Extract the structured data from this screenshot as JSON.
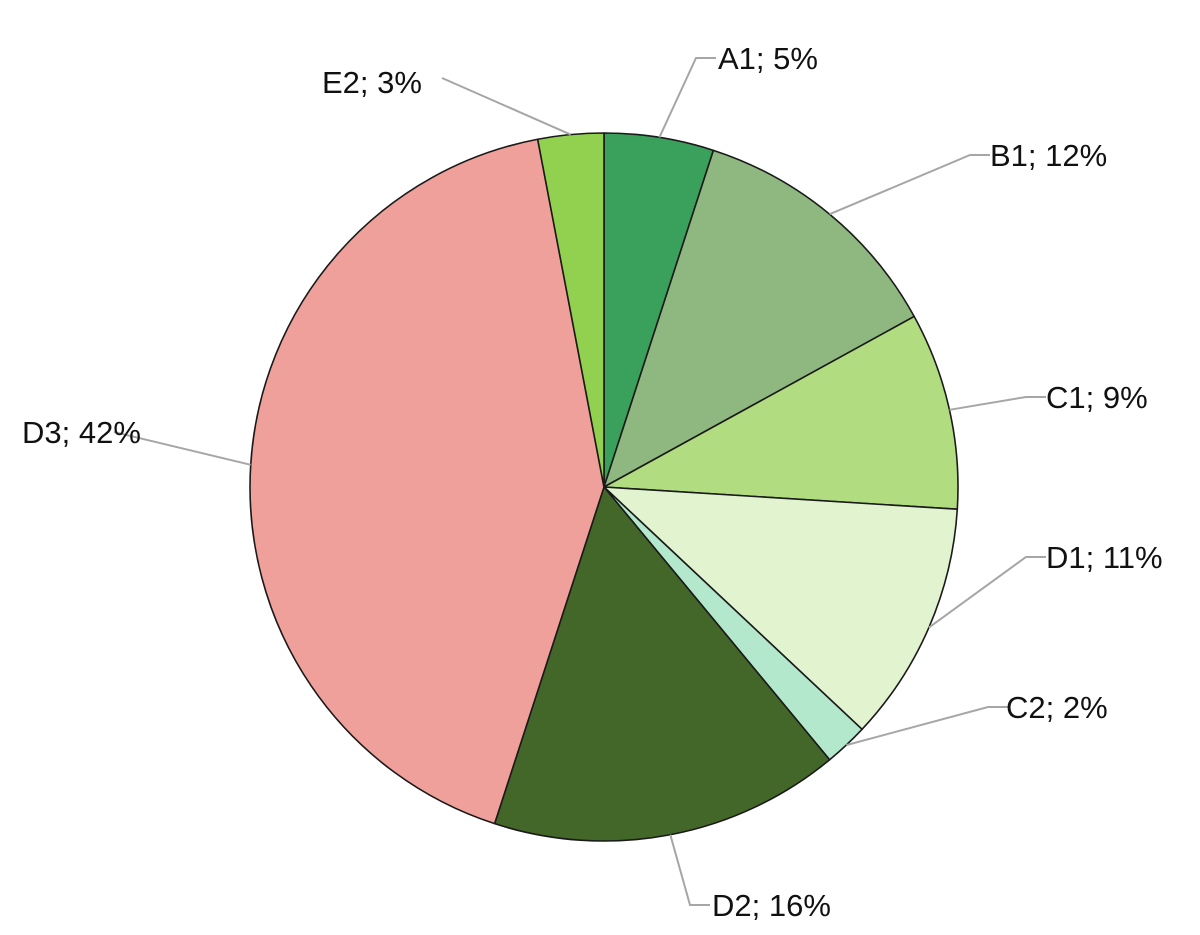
{
  "chart_data": {
    "type": "pie",
    "title": "",
    "start": "12 o'clock",
    "direction": "clockwise",
    "legend": "none",
    "label_format": "{category}; {value}%",
    "slices": [
      {
        "category": "A1",
        "value": 5,
        "label": "A1; 5%",
        "color": "#3aa15c"
      },
      {
        "category": "B1",
        "value": 12,
        "label": "B1; 12%",
        "color": "#8eb87f"
      },
      {
        "category": "C1",
        "value": 9,
        "label": "C1; 9%",
        "color": "#b1dd80"
      },
      {
        "category": "D1",
        "value": 11,
        "label": "D1; 11%",
        "color": "#e2f3d0"
      },
      {
        "category": "C2",
        "value": 2,
        "label": "C2; 2%",
        "color": "#b3e8cc"
      },
      {
        "category": "D2",
        "value": 16,
        "label": "D2; 16%",
        "color": "#436629"
      },
      {
        "category": "D3",
        "value": 42,
        "label": "D3; 42%",
        "color": "#f0a09a"
      },
      {
        "category": "E2",
        "value": 3,
        "label": "E2; 3%",
        "color": "#92d150"
      }
    ]
  }
}
